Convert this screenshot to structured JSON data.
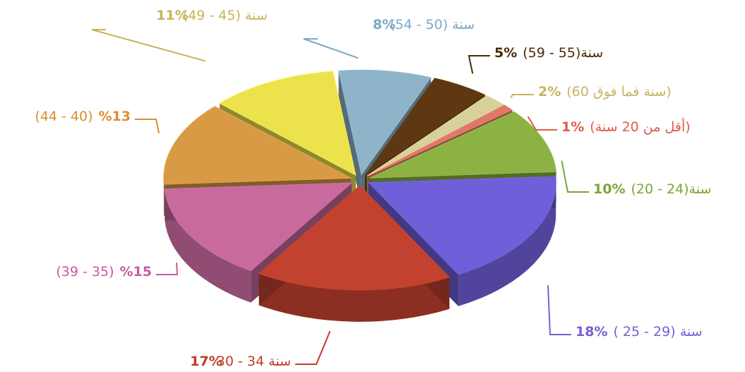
{
  "chart_data": {
    "type": "pie",
    "categories": [
      "سنة (50 - 54)",
      "(59 - 55)سنة",
      "(60 سنة فما فوق)",
      "(أقل من 20 سنة)",
      "(20 - 24)سنة",
      "( 25 - 29) سنة",
      "سنة 34 - 30",
      "(39 - 35)",
      "(44 - 40)",
      "سنة (45 - 49)"
    ],
    "values": [
      8,
      5,
      2,
      1,
      10,
      18,
      17,
      15,
      13,
      11
    ],
    "value_labels": [
      "%8",
      "5%",
      "2%",
      "1%",
      "10%",
      "18%",
      "%17",
      "%15",
      "%13",
      "%11"
    ],
    "colors": [
      "#8fb3c8",
      "#5e3812",
      "#d8d09a",
      "#e0786a",
      "#8db244",
      "#6f5fd8",
      "#c2412f",
      "#c86a9e",
      "#d99a46",
      "#ece24c"
    ],
    "label_colors": [
      "#7aa8c8",
      "#4a2a08",
      "#c4b464",
      "#e05a4a",
      "#7aa636",
      "#7a5ed2",
      "#c23a28",
      "#c95a98",
      "#d98e2e",
      "#c8b458"
    ]
  }
}
